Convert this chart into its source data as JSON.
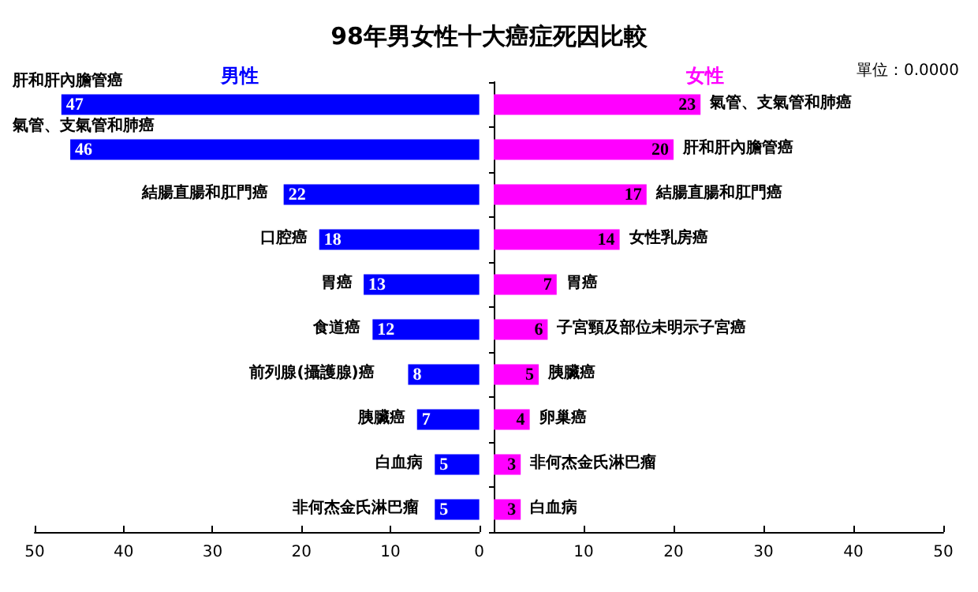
{
  "chart_data": [
    {
      "type": "bar",
      "orientation": "horizontal",
      "title": "98年男女性十大癌症死因比較",
      "categories": [
        "肝和肝內膽管癌",
        "氣管、支氣管和肺癌",
        "結腸直腸和肛門癌",
        "口腔癌",
        "胃癌",
        "食道癌",
        "前列腺(攝護腺)癌",
        "胰臟癌",
        "白血病",
        "非何杰金氏淋巴瘤"
      ],
      "series": [
        {
          "name": "男性",
          "color": "#0000ff",
          "values": [
            47,
            46,
            22,
            18,
            13,
            12,
            8,
            7,
            5,
            5
          ]
        }
      ],
      "xlim": [
        50,
        0
      ],
      "xticks": [
        50,
        40,
        30,
        20,
        10,
        0
      ],
      "data_labels": true,
      "legend": "top",
      "tick_labels": "x",
      "grid": false
    },
    {
      "type": "bar",
      "orientation": "horizontal",
      "annotations": [
        "單位：0.0000"
      ],
      "categories": [
        "氣管、支氣管和肺癌",
        "肝和肝內膽管癌",
        "結腸直腸和肛門癌",
        "女性乳房癌",
        "胃癌",
        "子宮頸及部位未明示子宮癌",
        "胰臟癌",
        "卵巢癌",
        "非何杰金氏淋巴瘤",
        "白血病"
      ],
      "series": [
        {
          "name": "女性",
          "color": "#ff00ff",
          "values": [
            23,
            20,
            17,
            14,
            7,
            6,
            5,
            4,
            3,
            3
          ]
        }
      ],
      "xlim": [
        0,
        50
      ],
      "xticks": [
        {
          "value": 0,
          "label": null
        },
        10,
        20,
        30,
        40,
        50
      ],
      "data_labels": true,
      "legend": "top",
      "tick_labels": "x",
      "grid": false
    }
  ]
}
